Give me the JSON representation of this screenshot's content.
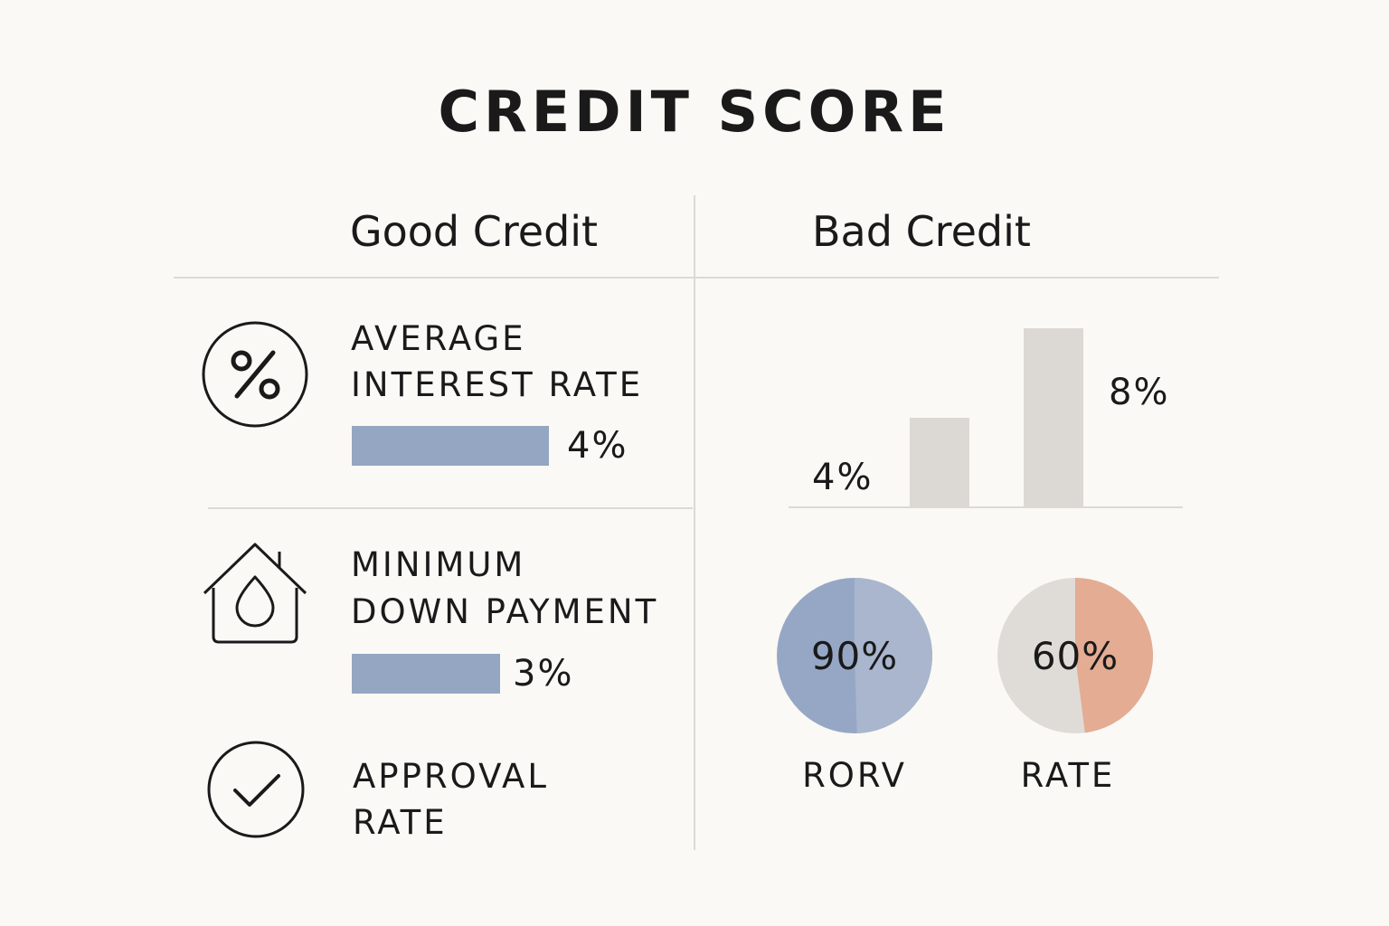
{
  "title": "CREDIT SCORE",
  "columns": {
    "good": "Good Credit",
    "bad": "Bad Credit"
  },
  "good_credit": {
    "interest": {
      "label_line1": "AVERAGE",
      "label_line2": "INTEREST RATE",
      "value_label": "4%",
      "value": 4,
      "icon": "percent-icon"
    },
    "down_payment": {
      "label_line1": "MINIMUM",
      "label_line2": "DOWN PAYMENT",
      "value_label": "3%",
      "value": 3,
      "icon": "house-drop-icon"
    },
    "approval": {
      "label_line1": "APPROVAL",
      "label_line2": "RATE",
      "icon": "checkmark-icon"
    }
  },
  "colors": {
    "background": "#fbf9f5",
    "good_bar": "#94a6c2",
    "bad_bar": "#dcd9d5",
    "pie_blue_dark": "#96a7c6",
    "pie_blue_light": "#a9b6cd",
    "pie_grey": "#dfdcd8",
    "pie_peach": "#e3ac93",
    "rule": "#dcdad5"
  },
  "chart_data": [
    {
      "type": "bar",
      "title": "",
      "series": [
        {
          "values": [
            4,
            8
          ]
        }
      ],
      "data_labels": [
        "4%",
        "8%"
      ],
      "bar_count": 2,
      "grid": false
    },
    {
      "type": "pie",
      "caption": "RORV",
      "center_label": "90%",
      "value": 90
    },
    {
      "type": "pie",
      "caption": "RATE",
      "center_label": "60%",
      "value": 60
    }
  ]
}
